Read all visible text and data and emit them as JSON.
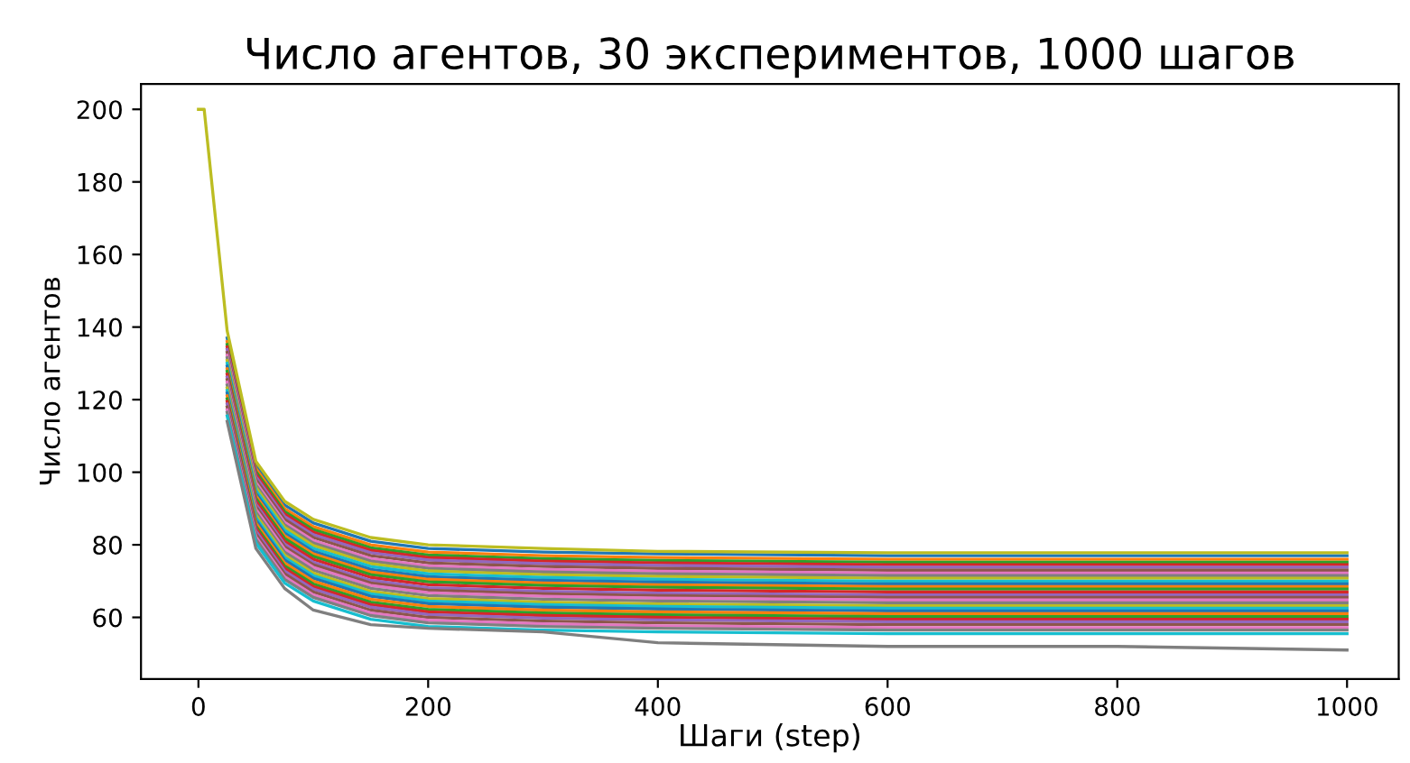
{
  "chart_data": {
    "type": "line",
    "title": "Число агентов, 30 экспериментов, 1000 шагов",
    "xlabel": "Шаги (step)",
    "ylabel": "Число агентов",
    "xlim": [
      -50,
      1045
    ],
    "ylim": [
      43,
      207
    ],
    "xticks": [
      0,
      200,
      400,
      600,
      800,
      1000
    ],
    "yticks": [
      60,
      80,
      100,
      120,
      140,
      160,
      180,
      200
    ],
    "grid": false,
    "x": [
      0,
      5,
      25,
      50,
      75,
      100,
      150,
      200,
      300,
      400,
      600,
      800,
      1000
    ],
    "series": [
      {
        "color": "#1f77b4",
        "values": [
          null,
          null,
          137,
          102,
          91,
          86,
          81,
          79,
          78,
          77.5,
          77,
          77,
          77
        ]
      },
      {
        "color": "#ff7f0e",
        "values": [
          null,
          null,
          136,
          101,
          90,
          85,
          80,
          78,
          77,
          76.5,
          76,
          76,
          76
        ]
      },
      {
        "color": "#2ca02c",
        "values": [
          null,
          null,
          135.2,
          100.2,
          89.2,
          84.2,
          79.2,
          77.2,
          76.2,
          75.7,
          75.2,
          75.2,
          75.2
        ]
      },
      {
        "color": "#d62728",
        "values": [
          null,
          null,
          134.5,
          99.5,
          88.5,
          83.5,
          78.5,
          76.5,
          75.5,
          75,
          74.5,
          74.5,
          74.5
        ]
      },
      {
        "color": "#9467bd",
        "values": [
          null,
          null,
          133.8,
          98.8,
          87.8,
          82.8,
          77.8,
          75.8,
          74.8,
          74.3,
          73.8,
          73.8,
          73.8
        ]
      },
      {
        "color": "#8c564b",
        "values": [
          null,
          null,
          133,
          98,
          87,
          82,
          77,
          75,
          74,
          73.5,
          73,
          73,
          73
        ]
      },
      {
        "color": "#e377c2",
        "values": [
          null,
          null,
          132.2,
          97.2,
          86.2,
          81.2,
          76.2,
          74.2,
          73.2,
          72.7,
          72.2,
          72.2,
          72.2
        ]
      },
      {
        "color": "#7f7f7f",
        "values": [
          null,
          null,
          131.5,
          96.5,
          85.5,
          80.5,
          75.5,
          73.5,
          72.5,
          72,
          71.5,
          71.5,
          71.5
        ]
      },
      {
        "color": "#bcbd22",
        "values": [
          null,
          null,
          130.8,
          95.8,
          84.8,
          79.8,
          74.8,
          72.8,
          71.8,
          71.3,
          70.8,
          70.8,
          70.8
        ]
      },
      {
        "color": "#17becf",
        "values": [
          null,
          null,
          130,
          95,
          84,
          79,
          74,
          72,
          71,
          70.5,
          70,
          70,
          70
        ]
      },
      {
        "color": "#1f77b4",
        "values": [
          null,
          null,
          129.2,
          94.2,
          83.2,
          78.2,
          73.2,
          71.2,
          70.2,
          69.7,
          69.2,
          69.2,
          69.2
        ]
      },
      {
        "color": "#ff7f0e",
        "values": [
          null,
          null,
          128.5,
          93.5,
          82.5,
          77.5,
          72.5,
          70.5,
          69.5,
          69,
          68.5,
          68.5,
          68.5
        ]
      },
      {
        "color": "#2ca02c",
        "values": [
          null,
          null,
          127.8,
          92.8,
          81.8,
          76.8,
          71.8,
          69.8,
          68.8,
          68.3,
          67.8,
          67.8,
          67.8
        ]
      },
      {
        "color": "#d62728",
        "values": [
          null,
          null,
          127,
          92,
          81,
          76,
          71,
          69,
          68,
          67.5,
          67,
          67,
          67
        ]
      },
      {
        "color": "#9467bd",
        "values": [
          null,
          null,
          126.2,
          91.2,
          80.2,
          75.2,
          70.2,
          68.2,
          67.2,
          66.7,
          66.2,
          66.2,
          66.2
        ]
      },
      {
        "color": "#8c564b",
        "values": [
          null,
          null,
          125.5,
          90.5,
          79.5,
          74.5,
          69.5,
          67.5,
          66.5,
          66,
          65.5,
          65.5,
          65.5
        ]
      },
      {
        "color": "#e377c2",
        "values": [
          null,
          null,
          124.8,
          89.8,
          78.8,
          73.8,
          68.8,
          66.8,
          65.8,
          65.3,
          64.8,
          64.8,
          64.8
        ]
      },
      {
        "color": "#7f7f7f",
        "values": [
          null,
          null,
          124,
          89,
          78,
          73,
          68,
          66,
          65,
          64.5,
          64,
          64,
          64
        ]
      },
      {
        "color": "#bcbd22",
        "values": [
          null,
          null,
          123.2,
          88.2,
          77.2,
          72.2,
          67.2,
          65.2,
          64.2,
          63.7,
          63.2,
          63.2,
          63.2
        ]
      },
      {
        "color": "#17becf",
        "values": [
          null,
          null,
          122.5,
          87.5,
          76.5,
          71.5,
          66.5,
          64.5,
          63.5,
          63,
          62.5,
          62.5,
          62.5
        ]
      },
      {
        "color": "#1f77b4",
        "values": [
          null,
          null,
          121.8,
          86.8,
          75.8,
          70.8,
          65.8,
          63.8,
          62.8,
          62.3,
          61.8,
          61.8,
          61.8
        ]
      },
      {
        "color": "#ff7f0e",
        "values": [
          null,
          null,
          121,
          86,
          75,
          70,
          65,
          63,
          62,
          61.5,
          61,
          61,
          61
        ]
      },
      {
        "color": "#2ca02c",
        "values": [
          null,
          null,
          120.2,
          85.2,
          74.2,
          69.2,
          64.2,
          62.2,
          61.2,
          60.7,
          60.2,
          60.2,
          60.2
        ]
      },
      {
        "color": "#d62728",
        "values": [
          null,
          null,
          119.5,
          84.5,
          73.5,
          68.5,
          63.5,
          61.5,
          60.5,
          60,
          59.5,
          59.5,
          59.5
        ]
      },
      {
        "color": "#9467bd",
        "values": [
          null,
          null,
          118.8,
          83.8,
          72.8,
          67.8,
          62.8,
          60.8,
          59.8,
          59.3,
          58.8,
          58.8,
          58.8
        ]
      },
      {
        "color": "#8c564b",
        "values": [
          null,
          null,
          118,
          83,
          72,
          67,
          62,
          60,
          59,
          58.5,
          58,
          58,
          58
        ]
      },
      {
        "color": "#e377c2",
        "values": [
          null,
          null,
          117.2,
          82.2,
          71.2,
          66.2,
          61.2,
          59.2,
          58.2,
          57.7,
          57.2,
          57.2,
          57.2
        ]
      },
      {
        "color": "#7f7f7f",
        "values": [
          null,
          null,
          116.5,
          81.5,
          70.5,
          65.5,
          60.5,
          58.5,
          57.5,
          57,
          56.5,
          56.5,
          56.5
        ]
      },
      {
        "color": "#17becf",
        "values": [
          null,
          null,
          115.5,
          80.5,
          69.5,
          64.5,
          59.5,
          57.5,
          56.5,
          56,
          55.5,
          55.5,
          55.5
        ]
      },
      {
        "color": "#7f7f7f",
        "values": [
          null,
          null,
          114,
          79,
          68,
          62,
          58,
          57,
          56,
          53,
          52,
          52,
          51
        ]
      },
      {
        "color": "#bcbd22",
        "values": [
          200,
          200,
          139,
          103,
          92,
          87,
          82,
          80,
          79,
          78.2,
          77.8,
          77.8,
          77.8
        ]
      }
    ]
  }
}
